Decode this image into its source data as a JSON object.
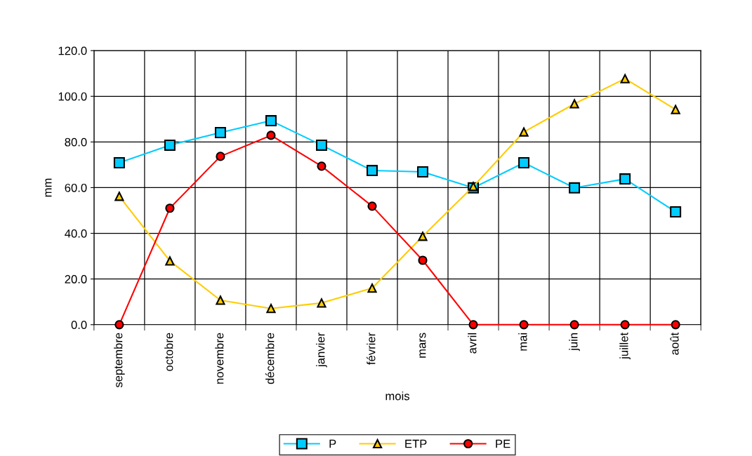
{
  "chart_data": {
    "type": "line",
    "xlabel": "mois",
    "ylabel": "mm",
    "categories": [
      "septembre",
      "octobre",
      "novembre",
      "décembre",
      "janvier",
      "février",
      "mars",
      "avril",
      "mai",
      "juin",
      "juillet",
      "août"
    ],
    "series": [
      {
        "name": "P",
        "color": "#00ccff",
        "marker": "square",
        "values": [
          70.9,
          78.6,
          84.1,
          89.3,
          78.6,
          67.5,
          66.9,
          59.9,
          70.9,
          59.9,
          63.8,
          49.4
        ]
      },
      {
        "name": "ETP",
        "color": "#ffcc00",
        "marker": "triangle",
        "values": [
          56.2,
          27.9,
          10.7,
          7.1,
          9.5,
          16.0,
          38.7,
          60.5,
          84.4,
          96.7,
          107.7,
          94.2
        ]
      },
      {
        "name": "PE",
        "color": "#ff0000",
        "marker": "circle",
        "values": [
          0,
          51.0,
          73.7,
          82.9,
          69.4,
          51.9,
          28.2,
          0,
          0,
          0,
          0,
          0
        ]
      }
    ],
    "ylim": [
      0,
      120
    ],
    "yticks": [
      {
        "value": 0,
        "label": "0.0"
      },
      {
        "value": 20,
        "label": "20.0"
      },
      {
        "value": 40,
        "label": "40.0"
      },
      {
        "value": 60,
        "label": "60.0"
      },
      {
        "value": 80,
        "label": "80.0"
      },
      {
        "value": 100,
        "label": "100.0"
      },
      {
        "value": 120,
        "label": "120.0"
      }
    ],
    "grid": true,
    "legend": "bottom",
    "line_style": "solid"
  }
}
